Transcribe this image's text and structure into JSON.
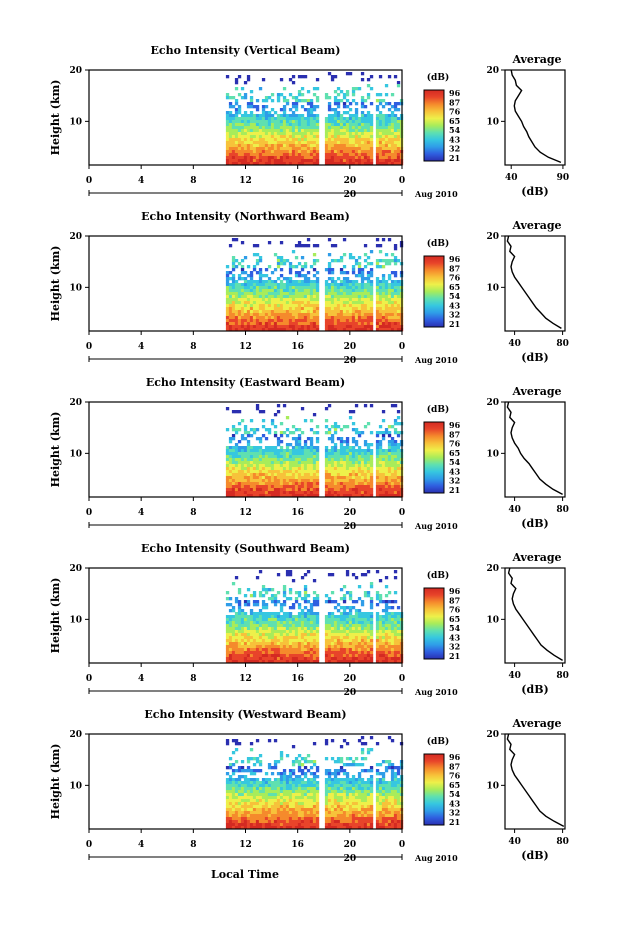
{
  "figure": {
    "xlabel": "Local Time",
    "date_label": "Aug 2010",
    "date_tick_label": "20"
  },
  "colors": {
    "colormap": [
      "#2a2fb0",
      "#2f5ee0",
      "#2f9de8",
      "#36c7e0",
      "#5fe0b0",
      "#a8ec5a",
      "#eef04a",
      "#f7c23a",
      "#f58a2c",
      "#e8442a",
      "#d42a22"
    ],
    "line": "#000000"
  },
  "chart_data": [
    {
      "type": "heatmap",
      "title": "Echo Intensity (Vertical Beam)",
      "ylabel": "Height (km)",
      "x_ticks": [
        "0",
        "4",
        "8",
        "12",
        "16",
        "20",
        "0"
      ],
      "xlim": [
        0,
        24
      ],
      "y_ticks": [
        "20",
        "10"
      ],
      "ylim": [
        1.5,
        20
      ],
      "data_start_hour": 10.5,
      "data_gaps_hours": [
        [
          17.6,
          17.9
        ],
        [
          21.6,
          22.0
        ]
      ],
      "colorbar": {
        "label": "(dB)",
        "ticks": [
          "96",
          "87",
          "76",
          "65",
          "54",
          "43",
          "32",
          "21"
        ]
      },
      "profile": {
        "title": "Average",
        "xlabel": "(dB)",
        "x_ticks": [
          "40",
          "90"
        ],
        "xlim": [
          34,
          92
        ],
        "y_ticks": [
          "20",
          "10"
        ],
        "heights_km": [
          2,
          3,
          4,
          5,
          6,
          7,
          8,
          9,
          10,
          11,
          12,
          13,
          14,
          15,
          16,
          17,
          18,
          19,
          20
        ],
        "values_db": [
          88,
          76,
          68,
          63,
          60,
          57,
          55,
          52,
          50,
          47,
          44,
          43,
          44,
          47,
          50,
          45,
          44,
          41,
          40
        ]
      }
    },
    {
      "type": "heatmap",
      "title": "Echo Intensity (Northward Beam)",
      "ylabel": "Height (km)",
      "x_ticks": [
        "0",
        "4",
        "8",
        "12",
        "16",
        "20",
        "0"
      ],
      "xlim": [
        0,
        24
      ],
      "y_ticks": [
        "20",
        "10"
      ],
      "ylim": [
        1.5,
        20
      ],
      "data_start_hour": 10.5,
      "data_gaps_hours": [
        [
          17.6,
          17.9
        ],
        [
          21.6,
          22.0
        ]
      ],
      "colorbar": {
        "label": "(dB)",
        "ticks": [
          "96",
          "87",
          "76",
          "65",
          "54",
          "43",
          "32",
          "21"
        ]
      },
      "profile": {
        "title": "Average",
        "xlabel": "(dB)",
        "x_ticks": [
          "40",
          "80"
        ],
        "xlim": [
          32,
          82
        ],
        "y_ticks": [
          "20",
          "10"
        ],
        "heights_km": [
          2,
          3,
          4,
          5,
          6,
          7,
          8,
          9,
          10,
          11,
          12,
          13,
          14,
          15,
          16,
          17,
          18,
          19,
          20
        ],
        "values_db": [
          79,
          72,
          66,
          62,
          58,
          55,
          52,
          49,
          46,
          43,
          40,
          38,
          37,
          38,
          40,
          36,
          37,
          34,
          35
        ]
      }
    },
    {
      "type": "heatmap",
      "title": "Echo Intensity (Eastward Beam)",
      "ylabel": "Height (km)",
      "x_ticks": [
        "0",
        "4",
        "8",
        "12",
        "16",
        "20",
        "0"
      ],
      "xlim": [
        0,
        24
      ],
      "y_ticks": [
        "20",
        "10"
      ],
      "ylim": [
        1.5,
        20
      ],
      "data_start_hour": 10.5,
      "data_gaps_hours": [
        [
          17.6,
          17.9
        ],
        [
          21.6,
          22.0
        ]
      ],
      "colorbar": {
        "label": "(dB)",
        "ticks": [
          "96",
          "87",
          "76",
          "65",
          "54",
          "43",
          "32",
          "21"
        ]
      },
      "profile": {
        "title": "Average",
        "xlabel": "(dB)",
        "x_ticks": [
          "40",
          "80"
        ],
        "xlim": [
          32,
          82
        ],
        "y_ticks": [
          "20",
          "10"
        ],
        "heights_km": [
          2,
          3,
          4,
          5,
          6,
          7,
          8,
          9,
          10,
          11,
          12,
          13,
          14,
          15,
          16,
          17,
          18,
          19,
          20
        ],
        "values_db": [
          80,
          72,
          66,
          61,
          58,
          55,
          52,
          48,
          45,
          43,
          40,
          38,
          37,
          38,
          40,
          36,
          37,
          34,
          35
        ]
      }
    },
    {
      "type": "heatmap",
      "title": "Echo Intensity (Southward Beam)",
      "ylabel": "Height (km)",
      "x_ticks": [
        "0",
        "4",
        "8",
        "12",
        "16",
        "20",
        "0"
      ],
      "xlim": [
        0,
        24
      ],
      "y_ticks": [
        "20",
        "10"
      ],
      "ylim": [
        1.5,
        20
      ],
      "data_start_hour": 10.5,
      "data_gaps_hours": [
        [
          17.6,
          17.9
        ],
        [
          21.6,
          22.0
        ]
      ],
      "colorbar": {
        "label": "(dB)",
        "ticks": [
          "96",
          "87",
          "76",
          "65",
          "54",
          "43",
          "32",
          "21"
        ]
      },
      "profile": {
        "title": "Average",
        "xlabel": "(dB)",
        "x_ticks": [
          "40",
          "80"
        ],
        "xlim": [
          32,
          82
        ],
        "y_ticks": [
          "20",
          "10"
        ],
        "heights_km": [
          2,
          3,
          4,
          5,
          6,
          7,
          8,
          9,
          10,
          11,
          12,
          13,
          14,
          15,
          16,
          17,
          18,
          19,
          20
        ],
        "values_db": [
          80,
          73,
          67,
          62,
          59,
          56,
          53,
          50,
          47,
          44,
          41,
          39,
          38,
          39,
          41,
          37,
          38,
          35,
          36
        ]
      }
    },
    {
      "type": "heatmap",
      "title": "Echo Intensity (Westward Beam)",
      "ylabel": "Height (km)",
      "x_ticks": [
        "0",
        "4",
        "8",
        "12",
        "16",
        "20",
        "0"
      ],
      "xlim": [
        0,
        24
      ],
      "y_ticks": [
        "20",
        "10"
      ],
      "ylim": [
        1.5,
        20
      ],
      "data_start_hour": 10.5,
      "data_gaps_hours": [
        [
          17.6,
          17.9
        ],
        [
          21.6,
          22.0
        ]
      ],
      "colorbar": {
        "label": "(dB)",
        "ticks": [
          "96",
          "87",
          "76",
          "65",
          "54",
          "43",
          "32",
          "21"
        ]
      },
      "profile": {
        "title": "Average",
        "xlabel": "(dB)",
        "x_ticks": [
          "40",
          "80"
        ],
        "xlim": [
          32,
          82
        ],
        "y_ticks": [
          "20",
          "10"
        ],
        "heights_km": [
          2,
          3,
          4,
          5,
          6,
          7,
          8,
          9,
          10,
          11,
          12,
          13,
          14,
          15,
          16,
          17,
          18,
          19,
          20
        ],
        "values_db": [
          81,
          73,
          66,
          61,
          58,
          55,
          52,
          49,
          46,
          43,
          40,
          38,
          37,
          38,
          40,
          36,
          37,
          34,
          35
        ]
      }
    }
  ]
}
